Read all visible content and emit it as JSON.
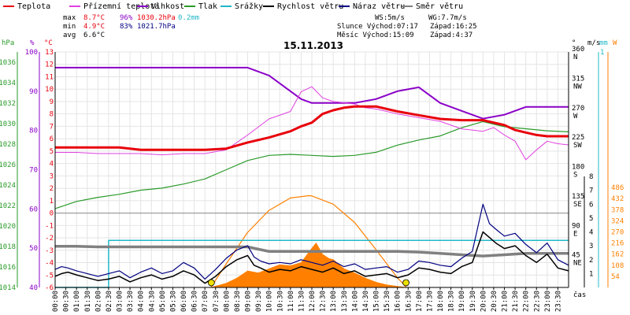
{
  "legend": [
    {
      "label": "Teplota",
      "color": "#e8000b"
    },
    {
      "label": "Přízemní teplota",
      "color": "#e040e0"
    },
    {
      "label": "Vlhkost",
      "color": "#8a00c8"
    },
    {
      "label": "Tlak",
      "color": "#2a9a2a"
    },
    {
      "label": "Srážky",
      "color": "#20b8c8"
    },
    {
      "label": "Rychlost větru",
      "color": "#000000"
    },
    {
      "label": "Náraz větru",
      "color": "#000080"
    },
    {
      "label": "Směr větru",
      "color": "#808080"
    }
  ],
  "stats": {
    "max": {
      "label": "max",
      "temp": "8.7°C",
      "hum": "96%",
      "press": "1030.2hPa",
      "rain": "0.2mm"
    },
    "min": {
      "label": "min",
      "temp": "4.9°C",
      "hum": "83%",
      "press": "1021.7hPa"
    },
    "avg": {
      "label": "avg",
      "temp": "6.6°C"
    }
  },
  "info": {
    "ws": "WS:5m/s",
    "wg": "WG:7.7m/s",
    "sun_rise": "Slunce Východ:07:17",
    "sun_set": "Západ:16:25",
    "moon_rise": "Měsíc  Východ:15:09",
    "moon_set": "Západ:4:37"
  },
  "date": "15.11.2013",
  "axis_titles": {
    "hpa": "hPa",
    "pct": "%",
    "deg_c": "°C",
    "deg": "°",
    "ms": "m/s",
    "mm": "mm",
    "w": "W",
    "time": "čas"
  },
  "colors": {
    "temp": "#e8000b",
    "ground": "#e040e0",
    "hum": "#8a00c8",
    "press": "#2a9a2a",
    "rain": "#20b8c8",
    "wind": "#000000",
    "gust": "#000080",
    "dir": "#808080",
    "solar": "#ff8000",
    "sun_curve": "#ff8000",
    "event": "#f0e000"
  },
  "chart_data": {
    "type": "line",
    "x_unit": "hours",
    "xlim": [
      0,
      24
    ],
    "x_ticks": [
      "00:00",
      "00:30",
      "01:00",
      "01:30",
      "02:00",
      "02:30",
      "03:00",
      "03:30",
      "04:00",
      "04:30",
      "05:00",
      "05:30",
      "06:00",
      "06:30",
      "07:00",
      "07:30",
      "08:00",
      "08:30",
      "09:00",
      "09:30",
      "10:00",
      "10:30",
      "11:00",
      "11:30",
      "12:00",
      "12:30",
      "13:00",
      "13:30",
      "14:00",
      "14:30",
      "15:00",
      "15:30",
      "16:00",
      "16:30",
      "17:00",
      "17:30",
      "18:00",
      "18:30",
      "19:00",
      "19:30",
      "20:00",
      "20:30",
      "21:00",
      "21:30",
      "22:00",
      "22:30",
      "23:00",
      "23:30"
    ],
    "axes": {
      "temp": {
        "ylim": [
          -6,
          13
        ],
        "ticks": [
          "13",
          "12",
          "11",
          "10",
          "9",
          "8",
          "7",
          "6",
          "5",
          "4",
          "3",
          "2",
          "1",
          "0",
          "-1",
          "-2",
          "-3",
          "-4",
          "-5",
          "-6"
        ]
      },
      "hum": {
        "ylim": [
          40,
          100
        ],
        "ticks": [
          "100",
          "90",
          "80",
          "70",
          "60",
          "50",
          "40"
        ]
      },
      "press": {
        "ylim": [
          1014,
          1036
        ],
        "ticks": [
          "1036",
          "1034",
          "1032",
          "1030",
          "1028",
          "1026",
          "1024",
          "1022",
          "1020",
          "1018",
          "1016",
          "1014"
        ]
      },
      "dir": {
        "ylim": [
          0,
          360
        ],
        "ticks": [
          "360",
          "315",
          "270",
          "225",
          "180",
          "135",
          "90",
          "45"
        ],
        "labels": [
          "N",
          "NW",
          "W",
          "SW",
          "S",
          "SE",
          "E",
          "NE"
        ]
      },
      "wind": {
        "ylim": [
          0,
          8
        ],
        "ticks": [
          "8",
          "7",
          "6",
          "5",
          "4",
          "3",
          "2",
          "1"
        ]
      },
      "rain": {
        "ylim": [
          0,
          1
        ],
        "ticks": [
          "1"
        ]
      },
      "solar": {
        "ylim": [
          0,
          540
        ],
        "ticks": [
          "486",
          "432",
          "378",
          "324",
          "270",
          "216",
          "162",
          "108",
          "54"
        ]
      }
    },
    "series": [
      {
        "name": "Teplota",
        "axis": "temp",
        "x": [
          0,
          1,
          2,
          3,
          4,
          5,
          6,
          7,
          8,
          9,
          10,
          11,
          11.5,
          12,
          12.5,
          13,
          13.5,
          14,
          15,
          16,
          17,
          18,
          19,
          20,
          21,
          21.5,
          22,
          22.5,
          23,
          23.5,
          24
        ],
        "y": [
          5.3,
          5.3,
          5.3,
          5.3,
          5.1,
          5.1,
          5.1,
          5.1,
          5.2,
          5.7,
          6.1,
          6.6,
          7.0,
          7.3,
          8.0,
          8.3,
          8.5,
          8.6,
          8.6,
          8.2,
          7.9,
          7.6,
          7.5,
          7.5,
          7.1,
          6.7,
          6.5,
          6.3,
          6.2,
          6.2,
          6.2
        ]
      },
      {
        "name": "Přízemní teplota",
        "axis": "temp",
        "x": [
          0,
          1,
          2,
          3,
          4,
          5,
          6,
          7,
          8,
          9,
          10,
          11,
          11.5,
          12,
          12.5,
          13,
          14,
          14.5,
          15,
          16,
          17,
          18,
          19,
          20,
          20.5,
          21,
          21.5,
          22,
          22.5,
          23,
          23.5,
          24
        ],
        "y": [
          4.9,
          4.9,
          4.8,
          4.8,
          4.8,
          4.7,
          4.8,
          4.8,
          5.1,
          6.3,
          7.6,
          8.2,
          9.8,
          10.2,
          9.3,
          9.0,
          8.8,
          8.5,
          8.4,
          8.0,
          7.7,
          7.4,
          6.8,
          6.6,
          6.9,
          6.3,
          5.8,
          4.3,
          5.1,
          5.8,
          5.6,
          5.5
        ]
      },
      {
        "name": "Vlhkost",
        "axis": "hum",
        "x": [
          0,
          3,
          5,
          6,
          7,
          8,
          9,
          10,
          11,
          11.5,
          12,
          14,
          15,
          16,
          17,
          18,
          19,
          20,
          21,
          22,
          23,
          24
        ],
        "y": [
          96,
          96,
          96,
          96,
          96,
          96,
          96,
          94,
          90,
          88,
          87,
          87,
          88,
          90,
          91,
          87,
          85,
          83,
          84,
          86,
          86,
          86
        ]
      },
      {
        "name": "Tlak",
        "axis": "press",
        "x": [
          0,
          1,
          2,
          3,
          4,
          5,
          6,
          7,
          8,
          9,
          10,
          11,
          12,
          13,
          14,
          15,
          16,
          17,
          18,
          19,
          20,
          21,
          22,
          23,
          24
        ],
        "y": [
          1021.7,
          1022.4,
          1022.8,
          1023.1,
          1023.5,
          1023.7,
          1024.1,
          1024.6,
          1025.5,
          1026.4,
          1026.9,
          1027.0,
          1026.9,
          1026.8,
          1026.9,
          1027.2,
          1027.9,
          1028.4,
          1028.8,
          1029.6,
          1030.2,
          1029.7,
          1029.5,
          1029.3,
          1029.2
        ]
      },
      {
        "name": "Srážky",
        "axis": "rain",
        "x": [
          0,
          2.5,
          2.5,
          24
        ],
        "y": [
          0,
          0,
          0.2,
          0.2
        ]
      },
      {
        "name": "Rychlost větru",
        "axis": "wind",
        "x": [
          0,
          0.3,
          0.6,
          1,
          1.5,
          2,
          2.5,
          3,
          3.5,
          4,
          4.5,
          5,
          5.5,
          6,
          6.5,
          7,
          7.5,
          8,
          8.5,
          9,
          9.3,
          9.6,
          10,
          10.5,
          11,
          11.5,
          12,
          12.5,
          13,
          13.5,
          14,
          14.5,
          15,
          15.5,
          16,
          16.5,
          17,
          17.5,
          18,
          18.5,
          19,
          19.5,
          20,
          20.3,
          20.6,
          21,
          21.5,
          22,
          22.5,
          23,
          23.5,
          24
        ],
        "y": [
          0.8,
          1,
          1.1,
          0.9,
          0.7,
          0.5,
          0.6,
          0.8,
          0.4,
          0.7,
          0.9,
          0.6,
          0.8,
          1.2,
          0.9,
          0.3,
          0.8,
          1.5,
          2.0,
          2.3,
          1.6,
          1.4,
          1.1,
          1.3,
          1.2,
          1.5,
          1.3,
          1.1,
          1.4,
          1.0,
          1.2,
          0.8,
          0.9,
          1.0,
          0.7,
          0.9,
          1.4,
          1.3,
          1.1,
          1.0,
          1.5,
          1.8,
          4.0,
          3.6,
          3.2,
          2.8,
          3.0,
          2.3,
          1.8,
          2.4,
          1.4,
          1.2
        ]
      },
      {
        "name": "Náraz větru",
        "axis": "wind",
        "x": [
          0,
          0.3,
          0.6,
          1,
          1.5,
          2,
          2.5,
          3,
          3.5,
          4,
          4.5,
          5,
          5.5,
          6,
          6.5,
          7,
          7.5,
          8,
          8.5,
          9,
          9.3,
          9.6,
          10,
          10.5,
          11,
          11.5,
          12,
          12.5,
          13,
          13.5,
          14,
          14.5,
          15,
          15.5,
          16,
          16.5,
          17,
          17.5,
          18,
          18.5,
          19,
          19.5,
          20,
          20.3,
          20.6,
          21,
          21.5,
          22,
          22.5,
          23,
          23.5,
          24
        ],
        "y": [
          1.3,
          1.5,
          1.4,
          1.2,
          1.0,
          0.8,
          1.0,
          1.2,
          0.7,
          1.1,
          1.4,
          1.0,
          1.2,
          1.8,
          1.4,
          0.6,
          1.3,
          2.1,
          2.7,
          3.0,
          2.2,
          1.9,
          1.7,
          1.8,
          1.7,
          2.0,
          1.8,
          1.6,
          1.9,
          1.5,
          1.7,
          1.3,
          1.4,
          1.5,
          1.1,
          1.3,
          1.9,
          1.8,
          1.6,
          1.5,
          2.1,
          2.6,
          6.0,
          4.6,
          4.2,
          3.7,
          3.9,
          3.1,
          2.5,
          3.2,
          2.0,
          1.6
        ]
      },
      {
        "name": "Směr větru",
        "axis": "dir",
        "x": [
          0,
          1,
          2,
          3,
          4,
          5,
          6,
          7,
          8,
          9,
          10,
          11,
          12,
          13,
          14,
          15,
          16,
          17,
          18,
          19,
          20,
          21,
          22,
          23,
          24
        ],
        "y": [
          63,
          63,
          62,
          62,
          62,
          62,
          62,
          62,
          62,
          62,
          55,
          55,
          55,
          55,
          55,
          55,
          55,
          54,
          52,
          50,
          48,
          50,
          52,
          52,
          52
        ]
      },
      {
        "name": "solar",
        "axis": "solar",
        "x": [
          7.3,
          8,
          8.5,
          9,
          9.5,
          10,
          10.5,
          11,
          11.5,
          12,
          12.2,
          12.5,
          12.8,
          13,
          13.5,
          14,
          14.5,
          15,
          15.5,
          16,
          16.4
        ],
        "y": [
          0,
          20,
          45,
          80,
          70,
          90,
          110,
          105,
          120,
          190,
          215,
          160,
          140,
          135,
          90,
          70,
          45,
          25,
          12,
          5,
          0
        ]
      },
      {
        "name": "sun_curve",
        "axis": "solar",
        "x": [
          7.28,
          8,
          9,
          10,
          11,
          11.86,
          12,
          13,
          14,
          15,
          16,
          16.42
        ],
        "y": [
          0,
          115,
          268,
          375,
          435,
          446,
          445,
          405,
          316,
          184,
          47,
          0
        ]
      }
    ],
    "events": [
      {
        "x": 7.3
      },
      {
        "x": 16.4
      }
    ]
  }
}
